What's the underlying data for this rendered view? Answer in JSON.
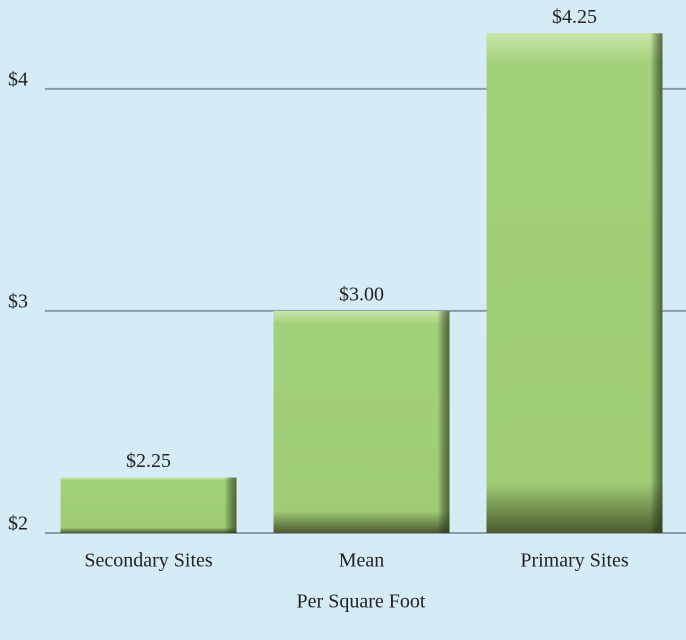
{
  "chart_data": {
    "type": "bar",
    "x_label": "Per Square Foot",
    "categories": [
      "Secondary Sites",
      "Mean",
      "Primary Sites"
    ],
    "values": [
      2.25,
      3.0,
      4.25
    ],
    "value_labels": [
      "$2.25",
      "$3.00",
      "$4.25"
    ],
    "color": "#a3d07a",
    "ylim": [
      2,
      4.4
    ],
    "yticks": [
      {
        "value": 2,
        "label": "$2"
      },
      {
        "value": 3,
        "label": "$3"
      },
      {
        "value": 4,
        "label": "$4"
      }
    ],
    "grid": true
  }
}
